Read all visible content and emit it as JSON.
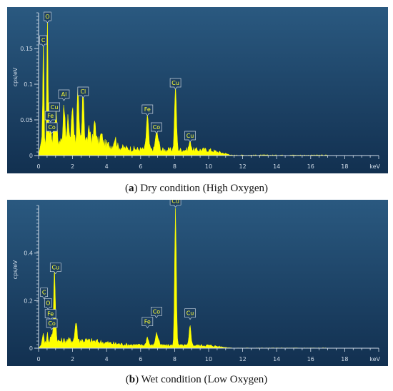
{
  "colors": {
    "panel_bg_top": "#2a5980",
    "panel_bg_bottom": "#123050",
    "spectrum": "#ffff00",
    "axis": "#d2dde9",
    "label_box_fill": "#1d3f60",
    "label_box_stroke": "#c9d4df"
  },
  "captions": [
    {
      "tag": "a",
      "text": " Dry condition (High Oxygen)"
    },
    {
      "tag": "b",
      "text": " Wet condition (Low Oxygen)"
    }
  ],
  "chart_data": [
    {
      "type": "area",
      "ylabel": "cps/eV",
      "xunit": "keV",
      "xlim": [
        0,
        20
      ],
      "ylim": [
        0,
        0.2
      ],
      "xticks": [
        0,
        2,
        4,
        6,
        8,
        10,
        12,
        14,
        16,
        18
      ],
      "yticks": [
        0,
        0.05,
        0.1,
        0.15
      ],
      "ytick_labels": [
        "0",
        "0.05",
        "0.1",
        "0.15"
      ],
      "baseline": 0.008,
      "peaks": [
        {
          "x": 0.28,
          "y": 0.152,
          "w": 0.05
        },
        {
          "x": 0.52,
          "y": 0.185,
          "w": 0.05
        },
        {
          "x": 0.7,
          "y": 0.025,
          "w": 0.07
        },
        {
          "x": 0.93,
          "y": 0.03,
          "w": 0.08
        },
        {
          "x": 1.04,
          "y": 0.04,
          "w": 0.06
        },
        {
          "x": 1.49,
          "y": 0.055,
          "w": 0.07
        },
        {
          "x": 1.74,
          "y": 0.03,
          "w": 0.07
        },
        {
          "x": 2.0,
          "y": 0.048,
          "w": 0.08
        },
        {
          "x": 2.31,
          "y": 0.067,
          "w": 0.07
        },
        {
          "x": 2.62,
          "y": 0.072,
          "w": 0.07
        },
        {
          "x": 3.0,
          "y": 0.015,
          "w": 0.1
        },
        {
          "x": 3.31,
          "y": 0.03,
          "w": 0.08
        },
        {
          "x": 3.69,
          "y": 0.012,
          "w": 0.1
        },
        {
          "x": 4.5,
          "y": 0.012,
          "w": 0.1
        },
        {
          "x": 6.4,
          "y": 0.048,
          "w": 0.09
        },
        {
          "x": 6.93,
          "y": 0.025,
          "w": 0.09
        },
        {
          "x": 7.06,
          "y": 0.01,
          "w": 0.08
        },
        {
          "x": 8.05,
          "y": 0.088,
          "w": 0.08
        },
        {
          "x": 8.91,
          "y": 0.012,
          "w": 0.09
        }
      ],
      "peak_labels": [
        {
          "text": "O",
          "x": 0.52,
          "y": 0.185
        },
        {
          "text": "C",
          "x": 0.28,
          "y": 0.152
        },
        {
          "text": "Cu",
          "x": 0.93,
          "y": 0.058
        },
        {
          "text": "Fe",
          "x": 0.7,
          "y": 0.046
        },
        {
          "text": "Co",
          "x": 0.78,
          "y": 0.03
        },
        {
          "text": "Al",
          "x": 1.49,
          "y": 0.076
        },
        {
          "text": "Cl",
          "x": 2.62,
          "y": 0.08
        },
        {
          "text": "Fe",
          "x": 6.4,
          "y": 0.055
        },
        {
          "text": "Co",
          "x": 6.93,
          "y": 0.03
        },
        {
          "text": "Cu",
          "x": 8.05,
          "y": 0.092
        },
        {
          "text": "Cu",
          "x": 8.91,
          "y": 0.018
        }
      ]
    },
    {
      "type": "area",
      "ylabel": "cps/eV",
      "xunit": "keV",
      "xlim": [
        0,
        20
      ],
      "ylim": [
        0,
        0.6
      ],
      "xticks": [
        0,
        2,
        4,
        6,
        8,
        10,
        12,
        14,
        16,
        18
      ],
      "yticks": [
        0,
        0.2,
        0.4
      ],
      "ytick_labels": [
        "0",
        "0.2",
        "0.4"
      ],
      "baseline": 0.012,
      "peaks": [
        {
          "x": 0.28,
          "y": 0.05,
          "w": 0.05
        },
        {
          "x": 0.52,
          "y": 0.04,
          "w": 0.05
        },
        {
          "x": 0.71,
          "y": 0.02,
          "w": 0.06
        },
        {
          "x": 0.78,
          "y": 0.02,
          "w": 0.06
        },
        {
          "x": 0.93,
          "y": 0.3,
          "w": 0.06
        },
        {
          "x": 1.0,
          "y": 0.06,
          "w": 0.07
        },
        {
          "x": 2.2,
          "y": 0.08,
          "w": 0.08
        },
        {
          "x": 6.4,
          "y": 0.035,
          "w": 0.09
        },
        {
          "x": 6.93,
          "y": 0.05,
          "w": 0.09
        },
        {
          "x": 7.06,
          "y": 0.02,
          "w": 0.08
        },
        {
          "x": 8.05,
          "y": 0.58,
          "w": 0.07
        },
        {
          "x": 8.91,
          "y": 0.085,
          "w": 0.08
        }
      ],
      "peak_labels": [
        {
          "text": "Cu",
          "x": 1.0,
          "y": 0.31
        },
        {
          "text": "C",
          "x": 0.32,
          "y": 0.205
        },
        {
          "text": "O",
          "x": 0.56,
          "y": 0.16
        },
        {
          "text": "Fe",
          "x": 0.7,
          "y": 0.115
        },
        {
          "text": "Co",
          "x": 0.78,
          "y": 0.075
        },
        {
          "text": "Fe",
          "x": 6.4,
          "y": 0.082
        },
        {
          "text": "Co",
          "x": 6.93,
          "y": 0.125
        },
        {
          "text": "Cu",
          "x": 8.05,
          "y": 0.59
        },
        {
          "text": "Cu",
          "x": 8.91,
          "y": 0.118
        }
      ]
    }
  ]
}
